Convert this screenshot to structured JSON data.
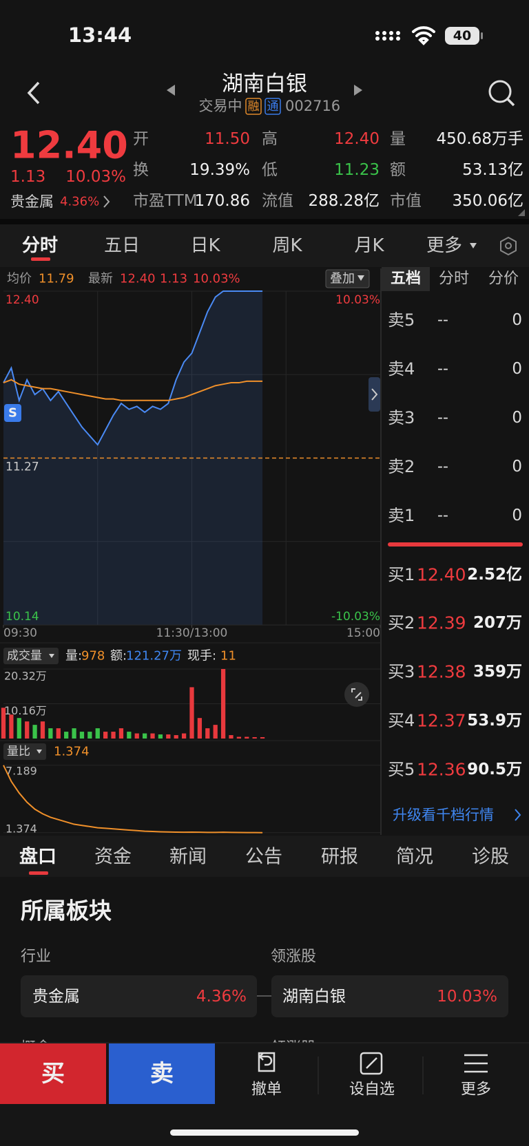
{
  "status_bar": {
    "time": "13:44",
    "battery": "40"
  },
  "header": {
    "title": "湖南白银",
    "status": "交易中",
    "badges": [
      "融",
      "通"
    ],
    "code": "002716"
  },
  "quote": {
    "price": "12.40",
    "change": "1.13",
    "change_pct": "10.03%",
    "sector": "贵金属",
    "sector_pct": "4.36%",
    "stats": [
      [
        "开",
        "11.50"
      ],
      [
        "高",
        "12.40"
      ],
      [
        "量",
        "450.68万手"
      ],
      [
        "换",
        "19.39%"
      ],
      [
        "低",
        "11.23"
      ],
      [
        "额",
        "53.13亿"
      ],
      [
        "市盈TTM",
        "170.86"
      ],
      [
        "流值",
        "288.28亿"
      ],
      [
        "市值",
        "350.06亿"
      ]
    ]
  },
  "tabs": [
    "分时",
    "五日",
    "日K",
    "周K",
    "月K",
    "更多"
  ],
  "info": {
    "avg_label": "均价",
    "avg": "11.79",
    "last_label": "最新",
    "last": "12.40",
    "change": "1.13",
    "change_pct": "10.03%",
    "overlay": "叠加"
  },
  "price_chart": {
    "type": "line",
    "marker": "S",
    "x": [
      0,
      5,
      10,
      15,
      20,
      25,
      30,
      35,
      40,
      45,
      50,
      55,
      60,
      65,
      70,
      75,
      80,
      85,
      90,
      95,
      100,
      105,
      110,
      115,
      120,
      125,
      130,
      135,
      140,
      145,
      150,
      155,
      160,
      165
    ],
    "xlim": [
      0,
      240
    ],
    "xticks": [
      {
        "value": 0,
        "label": "09:30"
      },
      {
        "value": 120,
        "label": "11:30/13:00"
      },
      {
        "value": 240,
        "label": "15:00"
      }
    ],
    "ylim": [
      10.14,
      12.4
    ],
    "yticks": [
      {
        "value": 12.4,
        "label": "12.40"
      },
      {
        "value": 11.27,
        "label": "11.27"
      },
      {
        "value": 10.14,
        "label": "10.14"
      }
    ],
    "pct_labels": [
      "10.03%",
      "-10.03%"
    ],
    "series": [
      {
        "color": "#4a8af4",
        "values": [
          11.78,
          11.88,
          11.66,
          11.8,
          11.7,
          11.74,
          11.66,
          11.72,
          11.64,
          11.56,
          11.48,
          11.42,
          11.36,
          11.46,
          11.56,
          11.64,
          11.6,
          11.62,
          11.58,
          11.62,
          11.6,
          11.64,
          11.8,
          11.92,
          11.98,
          12.12,
          12.26,
          12.36,
          12.4,
          12.4,
          12.4,
          12.4,
          12.4,
          12.4
        ]
      },
      {
        "color": "#f0902a",
        "values": [
          11.78,
          11.8,
          11.77,
          11.76,
          11.75,
          11.74,
          11.74,
          11.73,
          11.72,
          11.71,
          11.7,
          11.69,
          11.68,
          11.67,
          11.67,
          11.66,
          11.66,
          11.66,
          11.66,
          11.66,
          11.66,
          11.66,
          11.67,
          11.68,
          11.7,
          11.72,
          11.74,
          11.76,
          11.77,
          11.78,
          11.78,
          11.79,
          11.79,
          11.79
        ]
      }
    ]
  },
  "volume_chart": {
    "type": "bar",
    "label": "成交量",
    "stats": [
      [
        "量:",
        "978"
      ],
      [
        "额:",
        "121.27万"
      ],
      [
        "现手:",
        "11"
      ]
    ],
    "ylim": [
      0,
      20.32
    ],
    "yticks": [
      {
        "value": 20.32,
        "label": "20.32万"
      },
      {
        "value": 10.16,
        "label": "10.16万"
      }
    ],
    "up_color": "#e8393d",
    "down_color": "#3ac34a",
    "values": [
      9,
      7,
      6,
      5,
      4,
      5,
      3,
      3,
      2,
      3,
      2,
      2,
      3,
      2,
      2,
      3,
      2,
      1.5,
      1.5,
      1.5,
      1.2,
      1.2,
      1,
      1.5,
      15,
      6,
      3,
      4,
      20.32,
      1,
      0.5,
      0.5,
      0.4,
      0.4
    ]
  },
  "ratio_chart": {
    "type": "line",
    "label": "量比",
    "current": "1.374",
    "color": "#f0902a",
    "ylim": [
      1.3,
      7.3
    ],
    "yticks": [
      {
        "value": 7.189,
        "label": "7.189"
      },
      {
        "value": 1.374,
        "label": "1.374"
      }
    ],
    "values": [
      7.189,
      5.8,
      4.8,
      4.0,
      3.4,
      3.0,
      2.7,
      2.5,
      2.3,
      2.1,
      2.0,
      1.9,
      1.8,
      1.75,
      1.7,
      1.65,
      1.6,
      1.55,
      1.5,
      1.48,
      1.45,
      1.43,
      1.42,
      1.41,
      1.42,
      1.41,
      1.4,
      1.4,
      1.41,
      1.4,
      1.39,
      1.38,
      1.38,
      1.374
    ]
  },
  "order_book": {
    "tabs": [
      "五档",
      "分时",
      "分价"
    ],
    "asks": [
      [
        "卖5",
        "--",
        "0"
      ],
      [
        "卖4",
        "--",
        "0"
      ],
      [
        "卖3",
        "--",
        "0"
      ],
      [
        "卖2",
        "--",
        "0"
      ],
      [
        "卖1",
        "--",
        "0"
      ]
    ],
    "bids": [
      [
        "买1",
        "12.40",
        "2.52亿"
      ],
      [
        "买2",
        "12.39",
        "207万"
      ],
      [
        "买3",
        "12.38",
        "359万"
      ],
      [
        "买4",
        "12.37",
        "53.9万"
      ],
      [
        "买5",
        "12.36",
        "90.5万"
      ]
    ],
    "upgrade": "升级看千档行情"
  },
  "detail_tabs": [
    "盘口",
    "资金",
    "新闻",
    "公告",
    "研报",
    "简况",
    "诊股"
  ],
  "sector_section": {
    "title": "所属板块",
    "industry_label": "行业",
    "leader_label": "领涨股",
    "industry": {
      "name": "贵金属",
      "pct": "4.36%"
    },
    "leader": {
      "name": "湖南白银",
      "pct": "10.03%"
    },
    "concept_label": "概念",
    "concept_leader_label": "领涨股"
  },
  "footer": [
    "买",
    "卖",
    "撤单",
    "设自选",
    "更多"
  ]
}
